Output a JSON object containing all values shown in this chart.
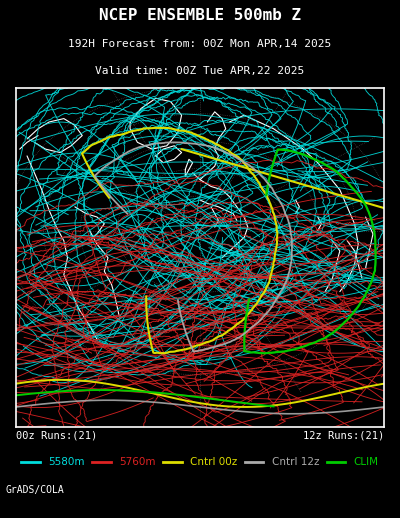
{
  "title_line1": "NCEP ENSEMBLE 500mb Z",
  "title_line2": "192H Forecast from: 00Z Mon APR,14 2025",
  "title_line3": "Valid time: 00Z Tue APR,22 2025",
  "background_color": "#000000",
  "text_color": "#ffffff",
  "map_bg": "#000000",
  "border_color": "#ffffff",
  "label_00z": "00z Runs:(21)",
  "label_12z": "12z Runs:(21)",
  "legend_items": [
    {
      "label": "5580m",
      "color": "#00dddd"
    },
    {
      "label": "5760m",
      "color": "#dd2222"
    },
    {
      "label": "Cntrl 00z",
      "color": "#dddd00"
    },
    {
      "label": "Cntrl 12z",
      "color": "#aaaaaa"
    },
    {
      "label": "CLIM",
      "color": "#00cc00"
    }
  ],
  "watermark": "GrADS/COLA",
  "seed": 12345,
  "fig_width": 4.0,
  "fig_height": 5.18,
  "dpi": 100
}
